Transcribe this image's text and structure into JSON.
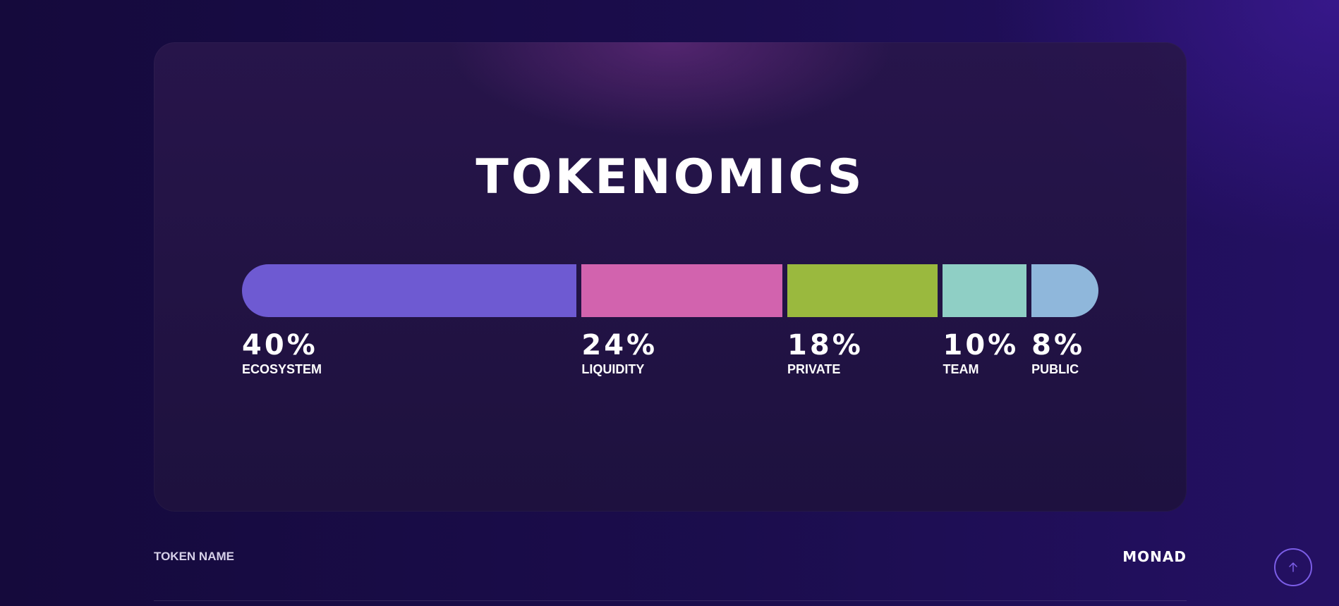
{
  "section": {
    "title": "TOKENOMICS"
  },
  "chart_data": {
    "type": "bar",
    "categories": [
      "ECOSYSTEM",
      "LIQUIDITY",
      "PRIVATE",
      "TEAM",
      "PUBLIC"
    ],
    "values": [
      40,
      24,
      18,
      10,
      8
    ],
    "value_labels": [
      "40%",
      "24%",
      "18%",
      "10%",
      "8%"
    ],
    "colors": [
      "#6e5ad2",
      "#d263ae",
      "#9ab93e",
      "#8fcfc5",
      "#8fb7db"
    ],
    "orientation": "horizontal-stacked",
    "unit": "%"
  },
  "details": {
    "token_name_label": "TOKEN NAME",
    "token_name_value": "MONAD"
  },
  "scroll_top": {
    "icon": "arrow-up-icon",
    "accent_color": "#7b5de6"
  }
}
